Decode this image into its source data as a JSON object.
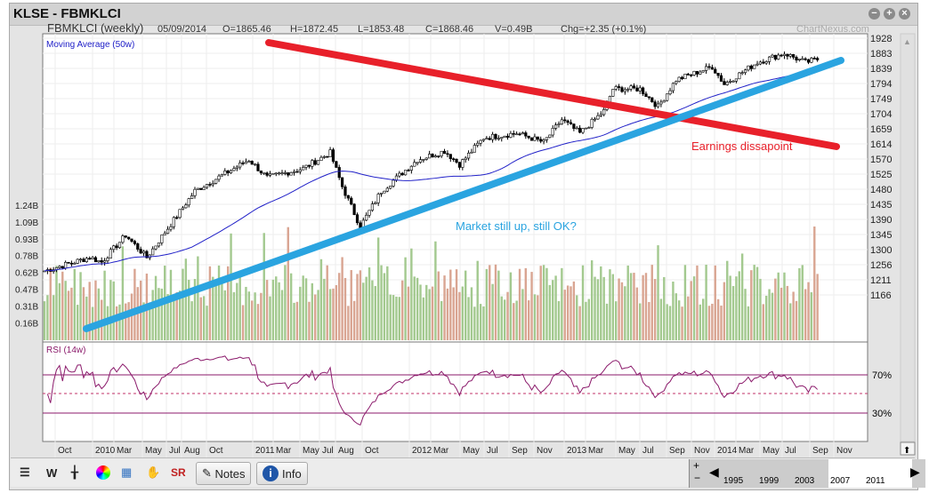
{
  "window": {
    "title": "KLSE - FBMKLCI",
    "buttons": [
      "minimize",
      "maximize",
      "close"
    ]
  },
  "header": {
    "symbol": "FBMKLCI (weekly)",
    "date": "05/09/2014",
    "open": "O=1865.46",
    "high": "H=1872.45",
    "low": "L=1853.48",
    "close": "C=1868.46",
    "volume": "V=0.49B",
    "change": "Chg=+2.35 (+0.1%)",
    "watermark": "ChartNexus.com"
  },
  "chart_data": {
    "type": "candlestick",
    "title": "FBMKLCI (weekly)",
    "indicator_label": "Moving Average (50w)",
    "rsi_label": "RSI (14w)",
    "price_ticks": [
      "1928",
      "1883",
      "1839",
      "1794",
      "1749",
      "1704",
      "1659",
      "1614",
      "1570",
      "1525",
      "1480",
      "1435",
      "1390",
      "1345",
      "1300",
      "1256",
      "1211",
      "1166"
    ],
    "price_range": [
      1166,
      1928
    ],
    "volume_ticks": [
      "1.24B",
      "1.09B",
      "0.93B",
      "0.78B",
      "0.62B",
      "0.47B",
      "0.31B",
      "0.16B"
    ],
    "rsi_ticks": [
      "70%",
      "30%"
    ],
    "x_ticks": [
      "Oct",
      "2010",
      "Mar",
      "May",
      "Jul",
      "Aug",
      "Oct",
      "2011",
      "Mar",
      "May",
      "Jul",
      "Aug",
      "Oct",
      "2012",
      "Mar",
      "May",
      "Jul",
      "Sep",
      "Nov",
      "2013",
      "Mar",
      "May",
      "Jul",
      "Sep",
      "Nov",
      "2014",
      "Mar",
      "May",
      "Jul",
      "Sep",
      "Nov"
    ],
    "close_keypoints": [
      [
        0,
        1235
      ],
      [
        15,
        1275
      ],
      [
        19,
        1261
      ],
      [
        27,
        1341
      ],
      [
        34,
        1275
      ],
      [
        50,
        1473
      ],
      [
        68,
        1566
      ],
      [
        74,
        1513
      ],
      [
        86,
        1540
      ],
      [
        95,
        1587
      ],
      [
        99,
        1486
      ],
      [
        105,
        1367
      ],
      [
        112,
        1473
      ],
      [
        124,
        1566
      ],
      [
        133,
        1592
      ],
      [
        138,
        1552
      ],
      [
        146,
        1631
      ],
      [
        157,
        1645
      ],
      [
        166,
        1618
      ],
      [
        172,
        1685
      ],
      [
        178,
        1645
      ],
      [
        186,
        1711
      ],
      [
        189,
        1777
      ],
      [
        198,
        1777
      ],
      [
        204,
        1724
      ],
      [
        210,
        1804
      ],
      [
        222,
        1843
      ],
      [
        226,
        1791
      ],
      [
        237,
        1856
      ],
      [
        246,
        1883
      ],
      [
        253,
        1856
      ],
      [
        257,
        1865
      ]
    ],
    "trendlines": [
      {
        "name": "resistance",
        "color": "#e8202a",
        "from": [
          "2010-Aug",
          1918
        ],
        "to": [
          "2014-Oct",
          1614
        ]
      },
      {
        "name": "support",
        "color": "#2aa4e0",
        "from": [
          "2009-Dec",
          1166
        ],
        "to": [
          "2014-Oct",
          1855
        ]
      }
    ],
    "annotations": [
      {
        "text": "Earnings dissapoint",
        "color": "#e8202a"
      },
      {
        "text": "Market still up, still OK?",
        "color": "#2aa4e0"
      }
    ]
  },
  "toolbar": {
    "notes": "Notes",
    "info": "Info",
    "nav_years": [
      "1995",
      "1999",
      "2003",
      "2007",
      "2011"
    ]
  }
}
